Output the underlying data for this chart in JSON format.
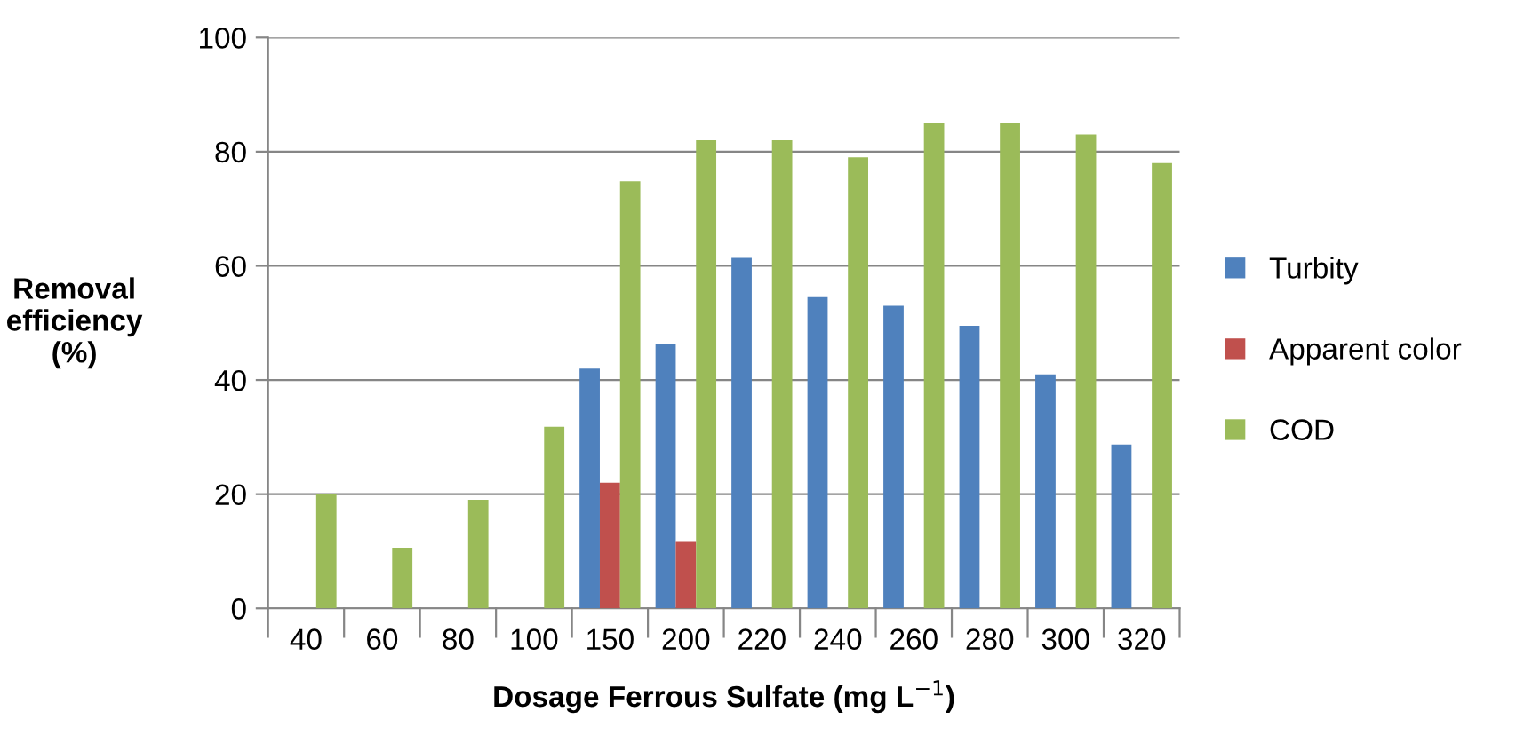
{
  "chart_data": {
    "type": "bar",
    "xlabel": "Dosage Ferrous Sulfate (mg L$^{−1}$)",
    "ylabel": "Removal\nefficiency\n(%)",
    "categories": [
      "40",
      "60",
      "80",
      "100",
      "150",
      "200",
      "220",
      "240",
      "260",
      "280",
      "300",
      "320"
    ],
    "series": [
      {
        "name": "Turbity",
        "color": "#4f81bd",
        "values": [
          null,
          null,
          null,
          null,
          42,
          46.4,
          61.4,
          54.5,
          53,
          49.5,
          41,
          28.7
        ]
      },
      {
        "name": "Apparent color",
        "color": "#c0504d",
        "values": [
          null,
          null,
          null,
          null,
          22,
          11.8,
          null,
          null,
          null,
          null,
          null,
          null
        ]
      },
      {
        "name": "COD",
        "color": "#9bbb59",
        "values": [
          20,
          10.6,
          19,
          31.8,
          74.8,
          82,
          82,
          79,
          85,
          85,
          83,
          78
        ]
      }
    ],
    "ylim": [
      0,
      100
    ],
    "yticks": [
      0,
      20,
      40,
      60,
      80,
      100
    ],
    "grid": "y",
    "legend": "right"
  }
}
